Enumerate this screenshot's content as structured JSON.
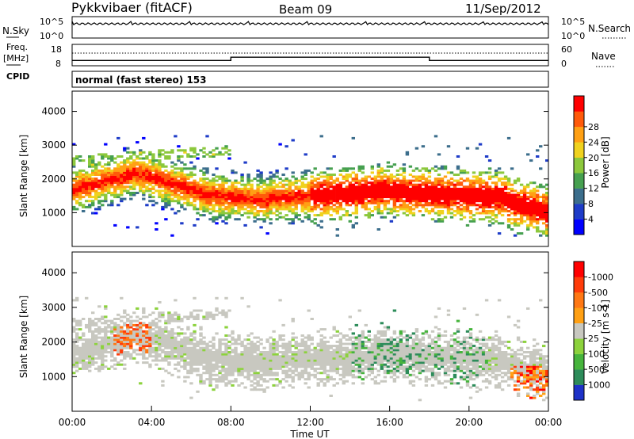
{
  "header": {
    "station": "Pykkvibaer (fitACF)",
    "beam": "Beam 09",
    "date": "11/Sep/2012"
  },
  "strips": {
    "nsky": {
      "left_label": "N.Sky",
      "right_label": "N.Search",
      "left_ticks": [
        "10^5",
        "10^0"
      ],
      "right_ticks": [
        "10^5",
        "10^0"
      ]
    },
    "freq": {
      "left_label_1": "Freq.",
      "left_label_2": "[MHz]",
      "right_label": "Nave",
      "left_ticks": [
        "18",
        "8"
      ],
      "right_ticks": [
        "60",
        "0"
      ],
      "steps": [
        {
          "start_h": 0,
          "end_h": 8,
          "level": 10.5
        },
        {
          "start_h": 8,
          "end_h": 18,
          "level": 12.0
        },
        {
          "start_h": 18,
          "end_h": 24,
          "level": 10.5
        }
      ]
    },
    "cpid": {
      "label": "CPID",
      "mode": "normal (fast stereo) 153"
    }
  },
  "chart_data": [
    {
      "type": "heatmap",
      "title": "",
      "xlabel": "",
      "ylabel": "Slant Range [km]",
      "x_range_hours": [
        0,
        24
      ],
      "ylim": [
        0,
        4600
      ],
      "yticks": [
        1000,
        2000,
        3000,
        4000
      ],
      "colorbar": {
        "label": "Power [dB]",
        "ticks": [
          "4",
          "8",
          "12",
          "16",
          "20",
          "24",
          "28"
        ],
        "colors": [
          "#0000ff",
          "#1e3cc8",
          "#3c6e8c",
          "#46a050",
          "#8cc83c",
          "#f0d21e",
          "#ffa014",
          "#ff5a0a",
          "#ff0000"
        ]
      }
    },
    {
      "type": "heatmap",
      "title": "",
      "xlabel": "Time UT",
      "ylabel": "Slant Range [km]",
      "x_range_hours": [
        0,
        24
      ],
      "ylim": [
        0,
        4600
      ],
      "yticks": [
        1000,
        2000,
        3000,
        4000
      ],
      "xticks": [
        "00:00",
        "04:00",
        "08:00",
        "12:00",
        "16:00",
        "20:00",
        "00:00"
      ],
      "colorbar": {
        "label": "Velocity [m s-1]",
        "ticks": [
          "1000",
          "500",
          "100",
          "25",
          "-25",
          "-100",
          "-500",
          "-1000"
        ],
        "colors": [
          "#1e32c8",
          "#2d8c5a",
          "#46b43c",
          "#8cd23c",
          "#c8c8c0",
          "#ffa014",
          "#ff7814",
          "#ff3c0a",
          "#ff0000"
        ]
      }
    }
  ]
}
